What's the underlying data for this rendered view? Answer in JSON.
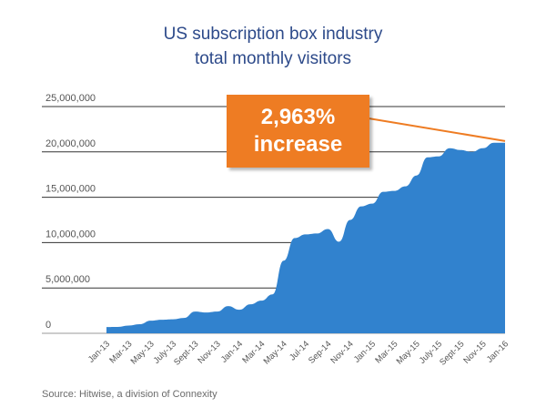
{
  "title_line1": "US subscription box industry",
  "title_line2": "total monthly visitors",
  "source": "Source: Hitwise, a division of Connexity",
  "callout": {
    "line1": "2,963%",
    "line2": "increase"
  },
  "colors": {
    "area": "#3182ce",
    "title": "#2d4a8a",
    "callout": "#ee7c23",
    "grid": "#333333",
    "axis_text": "#555555"
  },
  "chart_data": {
    "type": "area",
    "title": "US subscription box industry total monthly visitors",
    "xlabel": "",
    "ylabel": "",
    "ylim": [
      0,
      25000000
    ],
    "yticks": [
      0,
      5000000,
      10000000,
      15000000,
      20000000,
      25000000
    ],
    "ytick_labels": [
      "0",
      "5,000,000",
      "10,000,000",
      "15,000,000",
      "20,000,000",
      "25,000,000"
    ],
    "xtick_labels": [
      "Jan-13",
      "Mar-13",
      "May-13",
      "July-13",
      "Sept-13",
      "Nov-13",
      "Jan-14",
      "Mar-14",
      "May-14",
      "Jul-14",
      "Sep-14",
      "Nov-14",
      "Jan-15",
      "Mar-15",
      "May-15",
      "July-15",
      "Sept-15",
      "Nov-15",
      "Jan-16"
    ],
    "grid": true,
    "x": [
      "Jan-13",
      "Feb-13",
      "Mar-13",
      "Apr-13",
      "May-13",
      "Jun-13",
      "Jul-13",
      "Aug-13",
      "Sep-13",
      "Oct-13",
      "Nov-13",
      "Dec-13",
      "Jan-14",
      "Feb-14",
      "Mar-14",
      "Apr-14",
      "May-14",
      "Jun-14",
      "Jul-14",
      "Aug-14",
      "Sep-14",
      "Oct-14",
      "Nov-14",
      "Dec-14",
      "Jan-15",
      "Feb-15",
      "Mar-15",
      "Apr-15",
      "May-15",
      "Jun-15",
      "Jul-15",
      "Aug-15",
      "Sep-15",
      "Oct-15",
      "Nov-15",
      "Dec-15",
      "Jan-16"
    ],
    "values": [
      690000,
      700000,
      850000,
      1000000,
      1400000,
      1500000,
      1550000,
      1700000,
      2400000,
      2300000,
      2400000,
      3000000,
      2600000,
      3200000,
      3600000,
      4300000,
      8000000,
      10500000,
      10900000,
      11000000,
      11500000,
      10100000,
      12500000,
      14000000,
      14300000,
      15600000,
      15700000,
      16200000,
      17400000,
      19400000,
      19500000,
      20400000,
      20200000,
      20000000,
      20400000,
      21000000,
      21000000
    ]
  }
}
